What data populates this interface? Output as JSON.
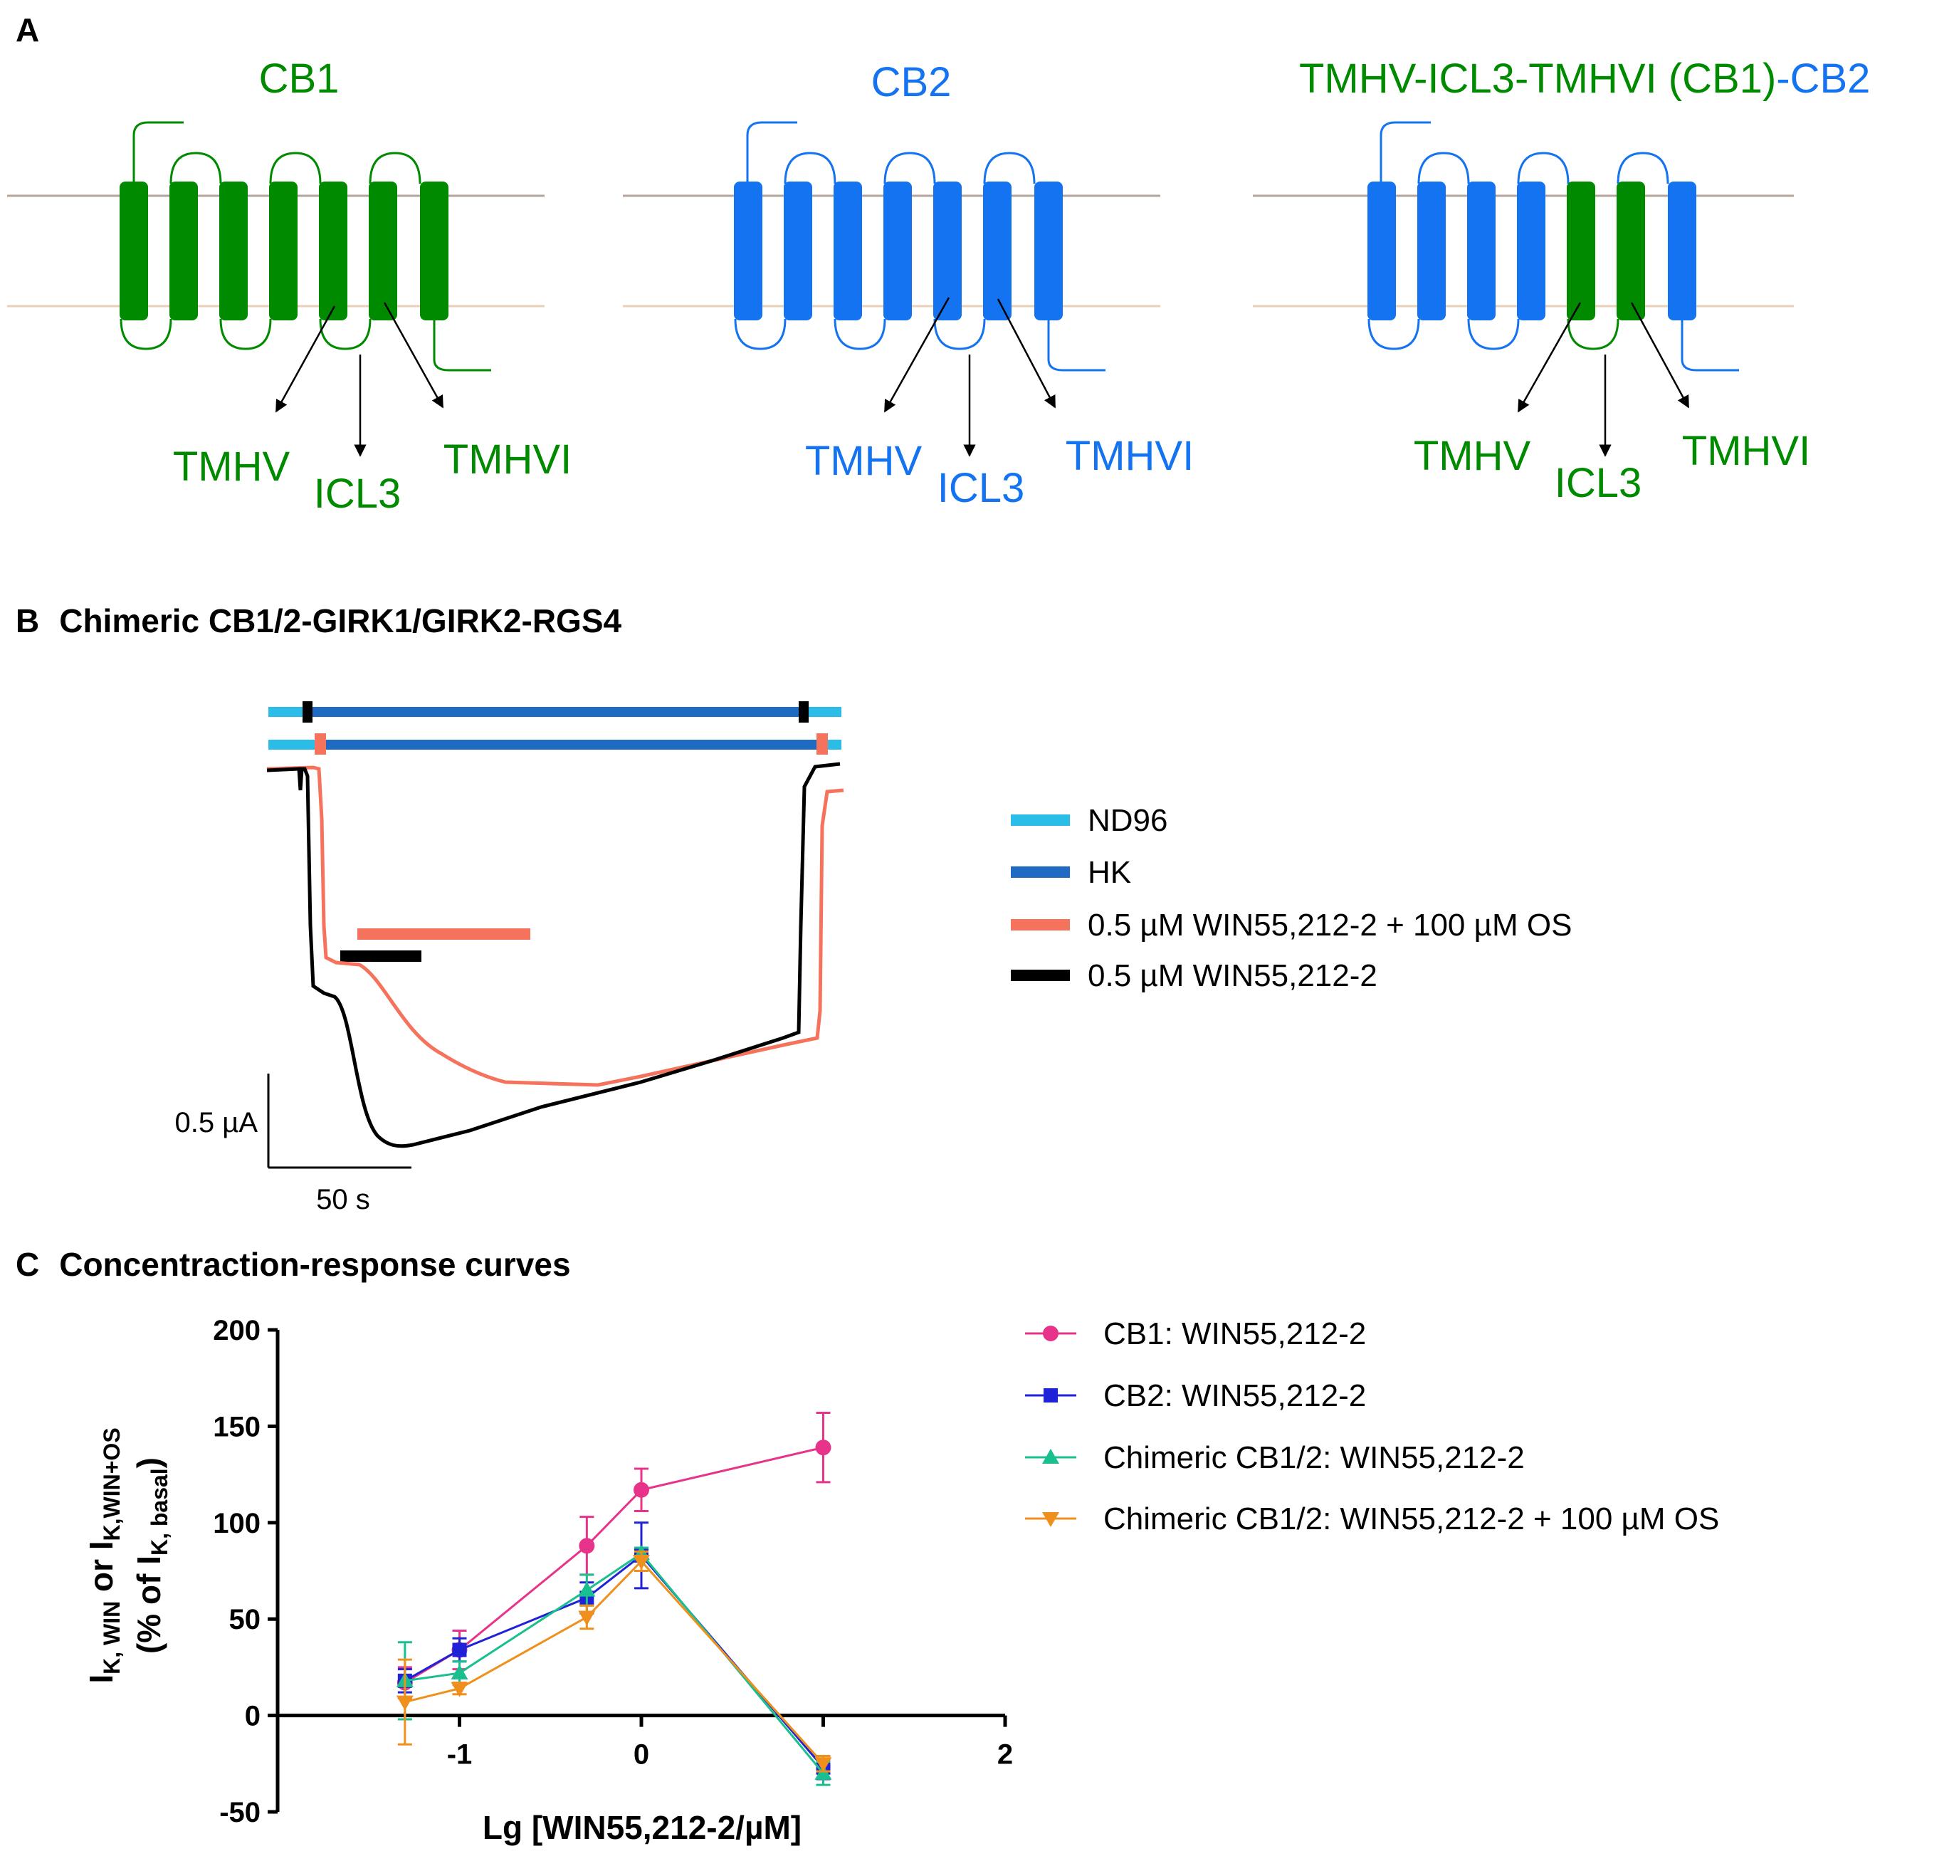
{
  "colors": {
    "cb1_green": "#008a00",
    "cb2_blue": "#1473f0",
    "membrane": "#b4a49a",
    "nd96": "#2bbce8",
    "hk": "#1f6bc4",
    "win_os": "#f5735c",
    "win": "#000000",
    "series_cb1": "#e8338a",
    "series_cb2": "#1f22d6",
    "series_chimeric": "#19bf8f",
    "series_chimeric_os": "#f0901c"
  },
  "panel_a": {
    "label": "A",
    "receptors": [
      {
        "title": "CB1",
        "tm5": "TMHV",
        "icl3": "ICL3",
        "tm6": "TMHVI"
      },
      {
        "title": "CB2",
        "tm5": "TMHV",
        "icl3": "ICL3",
        "tm6": "TMHVI"
      },
      {
        "title_part1": "TMHV-ICL3-TMHVI (CB1)",
        "title_part2": "-CB2",
        "tm5": "TMHV",
        "icl3": "ICL3",
        "tm6": "TMHVI"
      }
    ]
  },
  "panel_b": {
    "label": "B",
    "title": "Chimeric CB1/2-GIRK1/GIRK2-RGS4",
    "legend": [
      "ND96",
      "HK",
      "0.5 µM WIN55,212-2 + 100 µM OS",
      "0.5 µM WIN55,212-2"
    ],
    "scale_current": "0.5 µA",
    "scale_time": "50 s"
  },
  "panel_c": {
    "label": "C",
    "title": "Concentraction-response curves",
    "y_label_main": "(% of I",
    "y_label_sub": "K, basal",
    "y_label_close": ")",
    "y_label_top_parts": [
      "I",
      "K, WIN",
      " or I",
      "K,WIN+OS"
    ]
  },
  "chart_data": {
    "type": "line",
    "title": "Concentraction-response curves",
    "xlabel": "Lg [WIN55,212-2/µM]",
    "ylabel": "IK, WIN or IK,WIN+OS (% of IK, basal)",
    "xlim": [
      -2.0,
      2.0
    ],
    "ylim": [
      -50,
      200
    ],
    "xticks": [
      -1,
      0,
      2
    ],
    "yticks": [
      -50,
      0,
      50,
      100,
      150,
      200
    ],
    "series": [
      {
        "name": "CB1: WIN55,212-2",
        "marker": "circle",
        "x": [
          -1.3,
          -1.0,
          -0.3,
          0.0,
          1.0
        ],
        "y": [
          17,
          34,
          88,
          117,
          139
        ],
        "err": [
          8,
          10,
          15,
          11,
          18
        ]
      },
      {
        "name": "CB2: WIN55,212-2",
        "marker": "square",
        "x": [
          -1.3,
          -1.0,
          -0.3,
          0.0,
          1.0
        ],
        "y": [
          18,
          34,
          61,
          83,
          -27
        ],
        "err": [
          6,
          6,
          8,
          17,
          6
        ]
      },
      {
        "name": "Chimeric CB1/2: WIN55,212-2",
        "marker": "triangle-up",
        "x": [
          -1.3,
          -1.0,
          -0.3,
          0.0,
          1.0
        ],
        "y": [
          18,
          22,
          65,
          84,
          -30
        ],
        "err": [
          20,
          6,
          8,
          3,
          6
        ]
      },
      {
        "name": "Chimeric CB1/2: WIN55,212-2 + 100 µM OS",
        "marker": "triangle-down",
        "x": [
          -1.3,
          -1.0,
          -0.3,
          0.0,
          1.0
        ],
        "y": [
          7,
          14,
          51,
          80,
          -25
        ],
        "err": [
          22,
          3,
          6,
          5,
          4
        ]
      }
    ]
  }
}
